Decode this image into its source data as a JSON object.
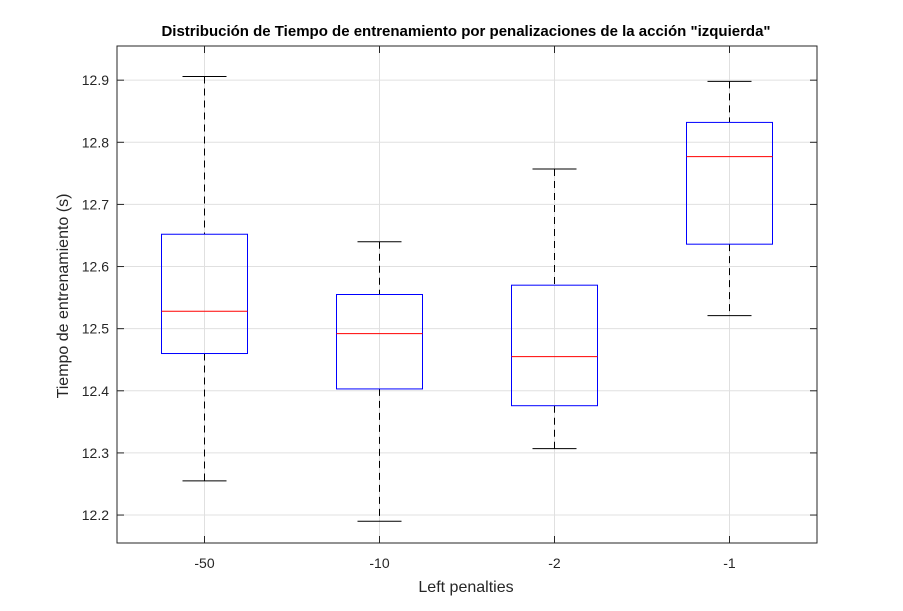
{
  "chart_data": {
    "type": "box",
    "title": "Distribución de Tiempo de entrenamiento por penalizaciones de la acción \"izquierda\"",
    "xlabel": "Left penalties",
    "ylabel": "Tiempo de entrenamiento (s)",
    "categories": [
      "-50",
      "-10",
      "-2",
      "-1"
    ],
    "ylim": [
      12.155,
      12.955
    ],
    "yticks": [
      12.2,
      12.3,
      12.4,
      12.5,
      12.6,
      12.7,
      12.8,
      12.9
    ],
    "ytick_labels": [
      "12.2",
      "12.3",
      "12.4",
      "12.5",
      "12.6",
      "12.7",
      "12.8",
      "12.9"
    ],
    "grid": true,
    "series": [
      {
        "category": "-50",
        "whisker_low": 12.255,
        "q1": 12.46,
        "median": 12.528,
        "q3": 12.652,
        "whisker_high": 12.906
      },
      {
        "category": "-10",
        "whisker_low": 12.19,
        "q1": 12.403,
        "median": 12.492,
        "q3": 12.555,
        "whisker_high": 12.64
      },
      {
        "category": "-2",
        "whisker_low": 12.307,
        "q1": 12.376,
        "median": 12.455,
        "q3": 12.57,
        "whisker_high": 12.757
      },
      {
        "category": "-1",
        "whisker_low": 12.521,
        "q1": 12.636,
        "median": 12.777,
        "q3": 12.832,
        "whisker_high": 12.898
      }
    ],
    "colors": {
      "box": "#0000ff",
      "median": "#ff0000",
      "whisker": "#000000",
      "grid": "#e0e0e0",
      "axis": "#262626"
    }
  }
}
